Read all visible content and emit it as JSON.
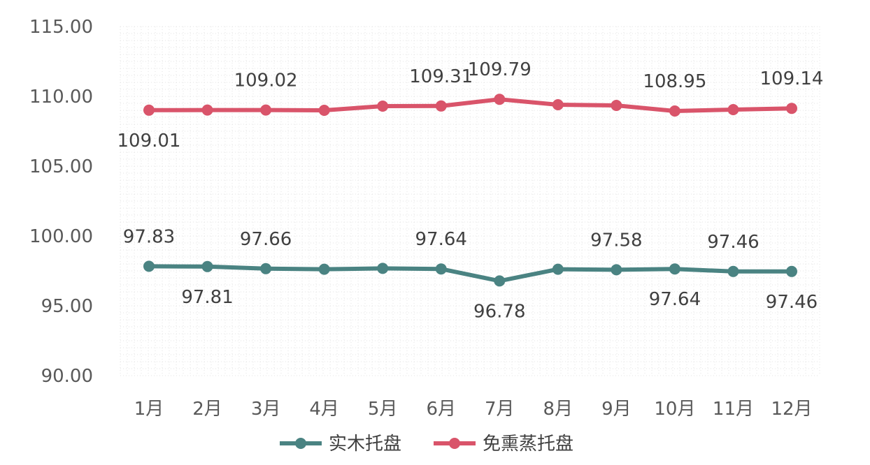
{
  "chart_data": {
    "type": "line",
    "categories": [
      "1月",
      "2月",
      "3月",
      "4月",
      "5月",
      "6月",
      "7月",
      "8月",
      "9月",
      "10月",
      "11月",
      "12月"
    ],
    "ylim": [
      90,
      115
    ],
    "yticks": [
      "90.00",
      "95.00",
      "100.00",
      "105.00",
      "110.00",
      "115.00"
    ],
    "grid": "dotted",
    "legend_position": "bottom",
    "series": [
      {
        "name": "实木托盘",
        "color": "#4A8382",
        "values": [
          97.83,
          97.81,
          97.66,
          97.62,
          97.68,
          97.64,
          96.78,
          97.62,
          97.58,
          97.64,
          97.46,
          97.46
        ],
        "labels": [
          "97.83",
          "97.81",
          "97.66",
          null,
          null,
          "97.64",
          "96.78",
          null,
          "97.58",
          "97.64",
          "97.46",
          "97.46"
        ]
      },
      {
        "name": "免熏蒸托盘",
        "color": "#D9546A",
        "values": [
          109.01,
          109.02,
          109.02,
          109.0,
          109.3,
          109.31,
          109.79,
          109.4,
          109.35,
          108.95,
          109.05,
          109.14
        ],
        "labels": [
          "109.01",
          null,
          "109.02",
          null,
          null,
          "109.31",
          "109.79",
          null,
          null,
          "108.95",
          null,
          "109.14"
        ]
      }
    ]
  }
}
